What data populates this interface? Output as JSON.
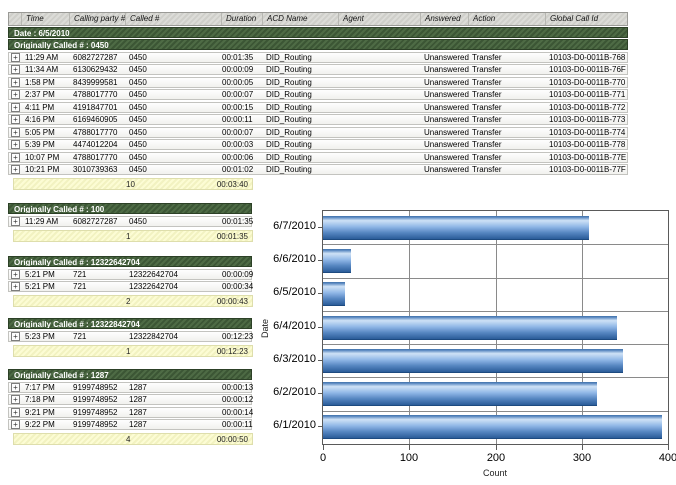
{
  "report": {
    "date_header": "Date : 6/5/2010",
    "columns": [
      "",
      "Time",
      "Calling party #",
      "Called #",
      "Duration",
      "ACD Name",
      "Agent",
      "Answered",
      "Action",
      "Global Call Id"
    ],
    "groups": [
      {
        "title": "Originally Called # : 0450",
        "rows": [
          [
            "11:29 AM",
            "6082727287",
            "0450",
            "00:01:35",
            "DID_Routing",
            "",
            "Unanswered",
            "Transfer",
            "10103-D0-0011B-768"
          ],
          [
            "11:34 AM",
            "6130629432",
            "0450",
            "00:00:09",
            "DID_Routing",
            "",
            "Unanswered",
            "Transfer",
            "10103-D0-0011B-76F"
          ],
          [
            "1:58 PM",
            "8439999581",
            "0450",
            "00:00:05",
            "DID_Routing",
            "",
            "Unanswered",
            "Transfer",
            "10103-D0-0011B-770"
          ],
          [
            "2:37 PM",
            "4788017770",
            "0450",
            "00:00:07",
            "DID_Routing",
            "",
            "Unanswered",
            "Transfer",
            "10103-D0-0011B-771"
          ],
          [
            "4:11 PM",
            "4191847701",
            "0450",
            "00:00:15",
            "DID_Routing",
            "",
            "Unanswered",
            "Transfer",
            "10103-D0-0011B-772"
          ],
          [
            "4:16 PM",
            "6169460905",
            "0450",
            "00:00:11",
            "DID_Routing",
            "",
            "Unanswered",
            "Transfer",
            "10103-D0-0011B-773"
          ],
          [
            "5:05 PM",
            "4788017770",
            "0450",
            "00:00:07",
            "DID_Routing",
            "",
            "Unanswered",
            "Transfer",
            "10103-D0-0011B-774"
          ],
          [
            "5:39 PM",
            "4474012204",
            "0450",
            "00:00:03",
            "DID_Routing",
            "",
            "Unanswered",
            "Transfer",
            "10103-D0-0011B-778"
          ],
          [
            "10:07 PM",
            "4788017770",
            "0450",
            "00:00:06",
            "DID_Routing",
            "",
            "Unanswered",
            "Transfer",
            "10103-D0-0011B-77E"
          ],
          [
            "10:21 PM",
            "3010739363",
            "0450",
            "00:01:02",
            "DID_Routing",
            "",
            "Unanswered",
            "Transfer",
            "10103-D0-0011B-77F"
          ]
        ],
        "summary": {
          "count": "10",
          "total_duration": "00:03:40"
        }
      },
      {
        "title": "Originally Called # : 100",
        "rows": [
          [
            "11:29 AM",
            "6082727287",
            "0450",
            "00:01:35"
          ]
        ],
        "summary": {
          "count": "1",
          "total_duration": "00:01:35"
        }
      },
      {
        "title": "Originally Called # : 12322642704",
        "rows": [
          [
            "5:21 PM",
            "721",
            "12322642704",
            "00:00:09"
          ],
          [
            "5:21 PM",
            "721",
            "12322642704",
            "00:00:34"
          ]
        ],
        "summary": {
          "count": "2",
          "total_duration": "00:00:43"
        }
      },
      {
        "title": "Originally Called # : 12322842704",
        "rows": [
          [
            "5:23 PM",
            "721",
            "12322842704",
            "00:12:23"
          ]
        ],
        "summary": {
          "count": "1",
          "total_duration": "00:12:23"
        }
      },
      {
        "title": "Originally Called # : 1287",
        "rows": [
          [
            "7:17 PM",
            "9199748952",
            "1287",
            "00:00:13"
          ],
          [
            "7:18 PM",
            "9199748952",
            "1287",
            "00:00:12"
          ],
          [
            "9:21 PM",
            "9199748952",
            "1287",
            "00:00:14"
          ],
          [
            "9:22 PM",
            "9199748952",
            "1287",
            "00:00:11"
          ]
        ],
        "summary": {
          "count": "4",
          "total_duration": "00:00:50"
        }
      }
    ],
    "expand_icon_glyph": "+"
  },
  "chart_data": {
    "type": "bar",
    "orientation": "horizontal",
    "categories": [
      "6/7/2010",
      "6/6/2010",
      "6/5/2010",
      "6/4/2010",
      "6/3/2010",
      "6/2/2010",
      "6/1/2010"
    ],
    "values": [
      308,
      32,
      26,
      341,
      348,
      318,
      393
    ],
    "title": "",
    "xlabel": "Count",
    "ylabel": "Date",
    "xlim": [
      0,
      400
    ],
    "xticks": [
      0,
      100,
      200,
      300,
      400
    ],
    "grid": true,
    "legend": "none",
    "bar_color_top": "#cfe2f6",
    "bar_color_bottom": "#2b5c99"
  },
  "colors": {
    "group_band_green": "#45603c",
    "header_band_gray": "#d5d5d1",
    "summary_yellow": "#f7f7ca",
    "grid_gray": "#8a8a8a"
  }
}
